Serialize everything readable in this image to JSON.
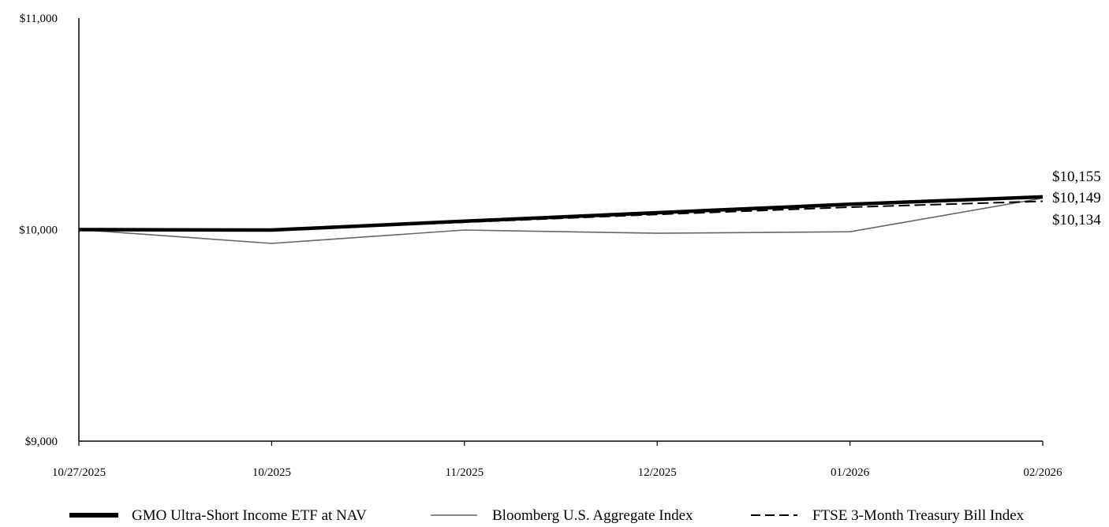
{
  "chart_data": {
    "type": "line",
    "title": "",
    "xlabel": "",
    "ylabel": "",
    "categories": [
      "10/27/2025",
      "10/2025",
      "11/2025",
      "12/2025",
      "01/2026",
      "02/2026"
    ],
    "y_ticks": [
      {
        "value": 11000,
        "label": "$11,000"
      },
      {
        "value": 10000,
        "label": "$10,000"
      },
      {
        "value": 9000,
        "label": "$9,000"
      }
    ],
    "ylim": [
      9000,
      11000
    ],
    "grid": false,
    "legend_position": "bottom",
    "series": [
      {
        "name": "GMO Ultra-Short Income ETF at NAV",
        "values": [
          10000,
          9998,
          10040,
          10080,
          10120,
          10155
        ],
        "style": "thick-solid",
        "color": "#000000"
      },
      {
        "name": "Bloomberg U.S. Aggregate Index",
        "values": [
          10000,
          9935,
          9998,
          9983,
          9990,
          10149
        ],
        "style": "thin-solid",
        "color": "#666666"
      },
      {
        "name": "FTSE 3-Month Treasury Bill Index",
        "values": [
          10000,
          9997,
          10035,
          10072,
          10106,
          10134
        ],
        "style": "dashed",
        "color": "#000000"
      }
    ],
    "end_labels": [
      "$10,155",
      "$10,149",
      "$10,134"
    ]
  }
}
